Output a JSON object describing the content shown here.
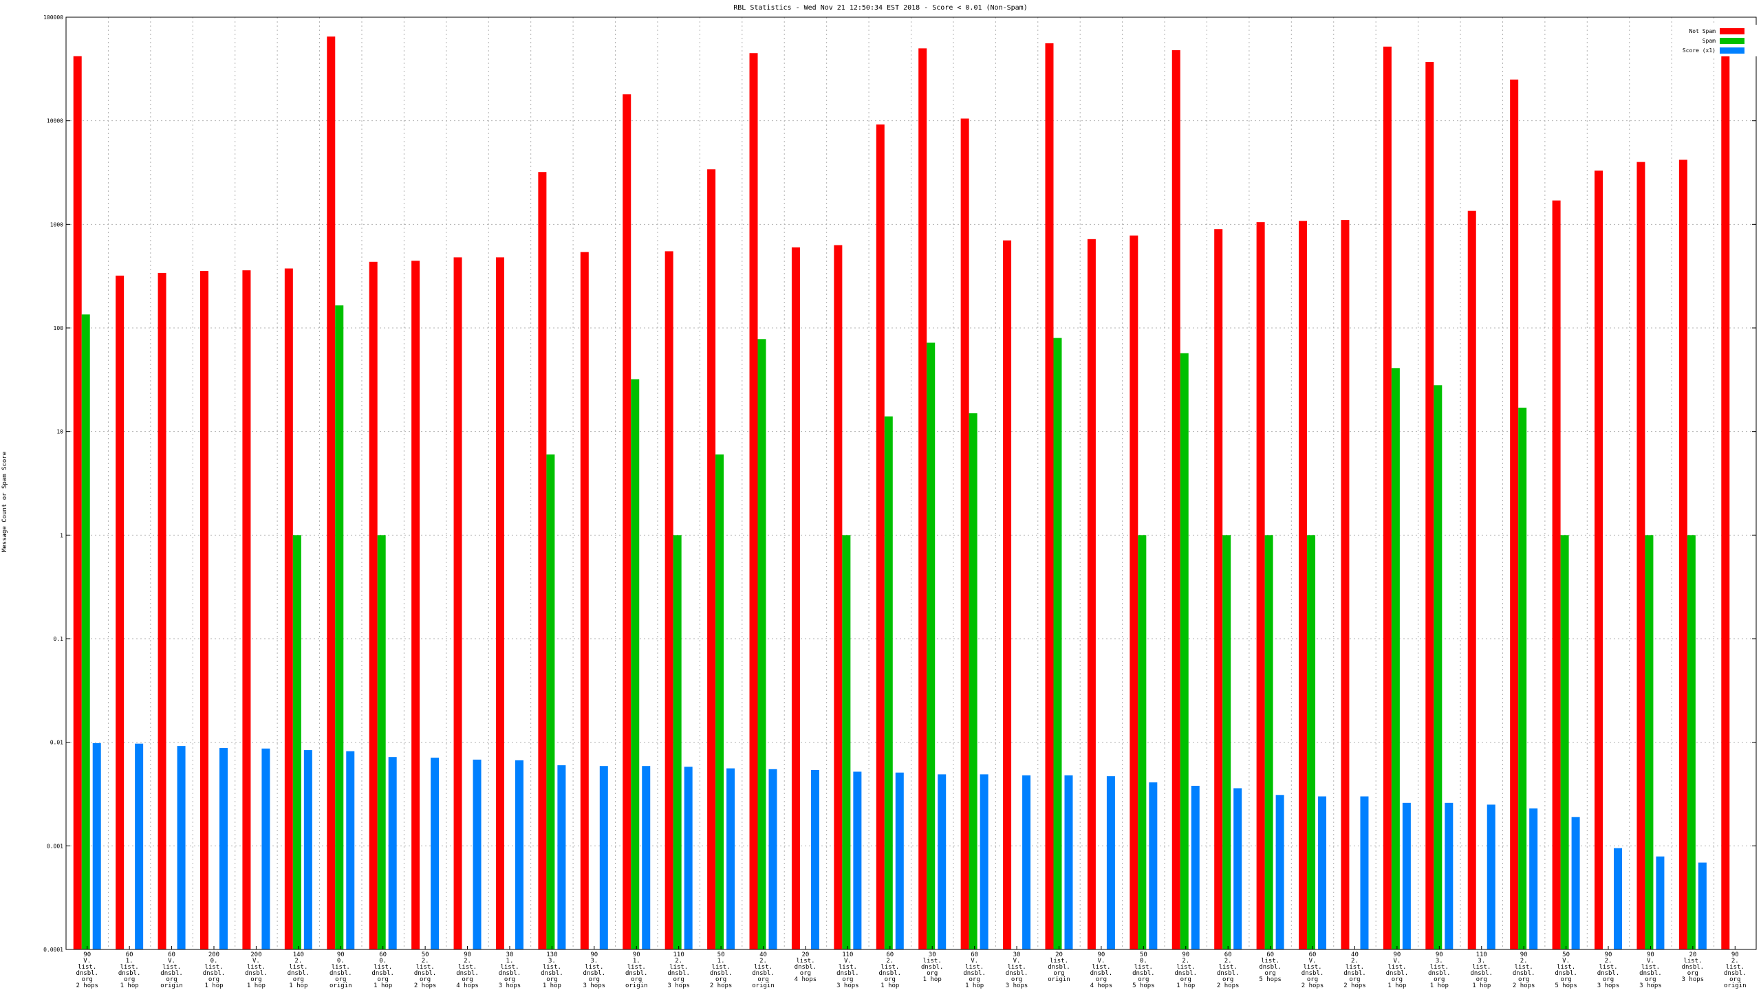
{
  "chart_data": {
    "type": "bar",
    "title": "RBL Statistics - Wed Nov 21 12:50:34 EST 2018 - Score < 0.01 (Non-Spam)",
    "ylabel": "Message Count or Spam Score",
    "yscale": "log",
    "ylim": [
      0.0001,
      100000
    ],
    "yticks": [
      {
        "value": 0.0001,
        "label": "0.0001"
      },
      {
        "value": 0.001,
        "label": "0.001"
      },
      {
        "value": 0.01,
        "label": "0.01"
      },
      {
        "value": 0.1,
        "label": "0.1"
      },
      {
        "value": 1,
        "label": "1"
      },
      {
        "value": 10,
        "label": "10"
      },
      {
        "value": 100,
        "label": "100"
      },
      {
        "value": 1000,
        "label": "1000"
      },
      {
        "value": 10000,
        "label": "10000"
      },
      {
        "value": 100000,
        "label": "100000"
      }
    ],
    "grid": true,
    "legend_position": "top-right",
    "colors": {
      "not_spam": "#ff0000",
      "spam": "#00c000",
      "score": "#0080ff"
    },
    "categories": [
      "90\nV.\nlist.\ndnsbl.\norg\n2 hops",
      "60\n1.\nlist.\ndnsbl.\norg\n1 hop",
      "60\nV.\nlist.\ndnsbl.\norg\norigin",
      "200\n0.\nlist.\ndnsbl.\norg\n1 hop",
      "200\nV.\nlist.\ndnsbl.\norg\n1 hop",
      "140\n2.\nlist.\ndnsbl.\norg\n1 hop",
      "90\n0.\nlist.\ndnsbl.\norg\norigin",
      "60\n0.\nlist.\ndnsbl.\norg\n1 hop",
      "50\n2.\nlist.\ndnsbl.\norg\n2 hops",
      "90\n2.\nlist.\ndnsbl.\norg\n4 hops",
      "30\n1.\nlist.\ndnsbl.\norg\n3 hops",
      "130\n3.\nlist.\ndnsbl.\norg\n1 hop",
      "90\n3.\nlist.\ndnsbl.\norg\n3 hops",
      "90\n1.\nlist.\ndnsbl.\norg\norigin",
      "110\n2.\nlist.\ndnsbl.\norg\n3 hops",
      "50\n1.\nlist.\ndnsbl.\norg\n2 hops",
      "40\n2.\nlist.\ndnsbl.\norg\norigin",
      "20\nlist.\ndnsbl.\norg\n4 hops",
      "110\nV.\nlist.\ndnsbl.\norg\n3 hops",
      "60\n2.\nlist.\ndnsbl.\norg\n1 hop",
      "30\nlist.\ndnsbl.\norg\n1 hop",
      "60\nV.\nlist.\ndnsbl.\norg\n1 hop",
      "30\nV.\nlist.\ndnsbl.\norg\n3 hops",
      "20\nlist.\ndnsbl.\norg\norigin",
      "90\nV.\nlist.\ndnsbl.\norg\n4 hops",
      "50\n0.\nlist.\ndnsbl.\norg\n5 hops",
      "90\n2.\nlist.\ndnsbl.\norg\n1 hop",
      "60\n2.\nlist.\ndnsbl.\norg\n2 hops",
      "60\nlist.\ndnsbl.\norg\n5 hops",
      "60\nV.\nlist.\ndnsbl.\norg\n2 hops",
      "40\n2.\nlist.\ndnsbl.\norg\n2 hops",
      "90\nV.\nlist.\ndnsbl.\norg\n1 hop",
      "90\n3.\nlist.\ndnsbl.\norg\n1 hop",
      "110\n3.\nlist.\ndnsbl.\norg\n1 hop",
      "90\n2.\nlist.\ndnsbl.\norg\n2 hops",
      "50\nV.\nlist.\ndnsbl.\norg\n5 hops",
      "90\n2.\nlist.\ndnsbl.\norg\n3 hops",
      "90\nV.\nlist.\ndnsbl.\norg\n3 hops",
      "20\nlist.\ndnsbl.\norg\n3 hops",
      "90\n2.\nlist.\ndnsbl.\norg\norigin"
    ],
    "series": [
      {
        "name": "Not Spam",
        "color": "#ff0000",
        "values": [
          42000,
          320,
          340,
          355,
          360,
          375,
          65000,
          435,
          445,
          480,
          480,
          3200,
          540,
          18000,
          550,
          3400,
          45000,
          600,
          630,
          9200,
          50000,
          10500,
          700,
          56000,
          720,
          780,
          48000,
          900,
          1050,
          1080,
          1100,
          52000,
          37000,
          1350,
          25000,
          1700,
          3300,
          4000,
          4200,
          60000
        ]
      },
      {
        "name": "Spam",
        "color": "#00c000",
        "values": [
          135,
          null,
          null,
          null,
          null,
          1,
          165,
          1,
          null,
          null,
          null,
          6,
          null,
          32,
          1,
          6,
          78,
          null,
          1,
          14,
          72,
          15,
          null,
          80,
          null,
          1,
          57,
          1,
          1,
          1,
          null,
          41,
          28,
          null,
          17,
          1,
          null,
          1,
          1,
          null
        ]
      },
      {
        "name": "Score (x1)",
        "color": "#0080ff",
        "values": [
          0.0098,
          0.0097,
          0.0092,
          0.0088,
          0.0087,
          0.0084,
          0.0082,
          0.0072,
          0.0071,
          0.0068,
          0.0067,
          0.006,
          0.0059,
          0.0059,
          0.0058,
          0.0056,
          0.0055,
          0.0054,
          0.0052,
          0.0051,
          0.0049,
          0.0049,
          0.0048,
          0.0048,
          0.0047,
          0.0041,
          0.0038,
          0.0036,
          0.0031,
          0.003,
          0.003,
          0.0026,
          0.0026,
          0.0025,
          0.0023,
          0.0019,
          0.00095,
          0.00079,
          0.00069,
          null
        ]
      }
    ]
  }
}
